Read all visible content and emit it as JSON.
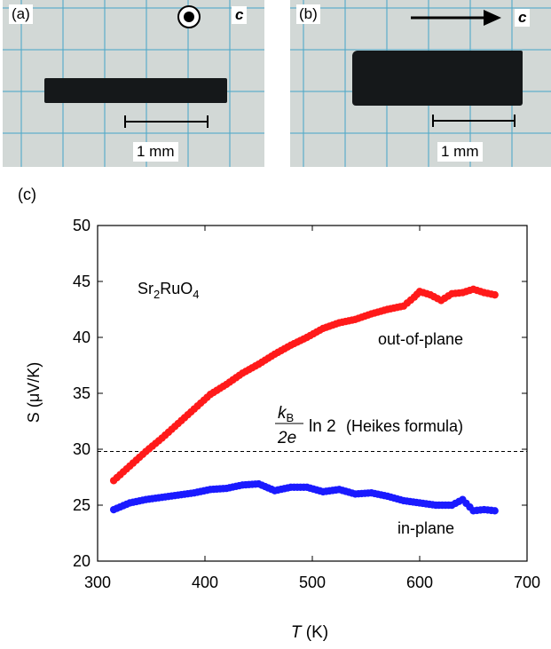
{
  "panel_a": {
    "label": "(a)",
    "axis": "c",
    "scale_label": "1 mm"
  },
  "panel_b": {
    "label": "(b)",
    "axis": "c",
    "scale_label": "1 mm"
  },
  "chart_data": {
    "panel_label": "(c)",
    "type": "scatter",
    "xlabel_italic": "T",
    "xlabel_unit": " (K)",
    "ylabel": "S (μV/K)",
    "xlim": [
      300,
      700
    ],
    "ylim": [
      20,
      50
    ],
    "xticks": [
      300,
      400,
      500,
      600,
      700
    ],
    "yticks": [
      20,
      25,
      30,
      35,
      40,
      45,
      50
    ],
    "material": {
      "p1": "Sr",
      "s1": "2",
      "p2": "RuO",
      "s2": "4"
    },
    "series": [
      {
        "name": "out-of-plane",
        "color": "#ff1a1a",
        "x": [
          315,
          330,
          345,
          360,
          375,
          390,
          405,
          420,
          435,
          450,
          465,
          480,
          495,
          510,
          525,
          540,
          555,
          570,
          585,
          595,
          600,
          610,
          620,
          630,
          640,
          650,
          660,
          670
        ],
        "y": [
          27.2,
          28.5,
          29.8,
          31.0,
          32.3,
          33.6,
          34.9,
          35.8,
          36.8,
          37.6,
          38.5,
          39.3,
          40.0,
          40.8,
          41.3,
          41.6,
          42.1,
          42.5,
          42.8,
          43.6,
          44.1,
          43.8,
          43.3,
          43.9,
          44.0,
          44.3,
          44.0,
          43.8
        ]
      },
      {
        "name": "in-plane",
        "color": "#1a1aff",
        "x": [
          315,
          330,
          345,
          360,
          375,
          390,
          405,
          420,
          435,
          450,
          465,
          480,
          495,
          510,
          525,
          540,
          555,
          570,
          585,
          600,
          615,
          630,
          640,
          650,
          660,
          670
        ],
        "y": [
          24.6,
          25.2,
          25.5,
          25.7,
          25.9,
          26.1,
          26.4,
          26.5,
          26.8,
          26.9,
          26.3,
          26.6,
          26.6,
          26.2,
          26.4,
          26.0,
          26.1,
          25.8,
          25.4,
          25.2,
          25.0,
          25.0,
          25.5,
          24.5,
          24.6,
          24.5
        ]
      }
    ],
    "heikes": {
      "value": 29.8,
      "num": "k",
      "num_sub": "B",
      "den": "2e",
      "ln": "ln 2",
      "label": "(Heikes formula)"
    }
  }
}
